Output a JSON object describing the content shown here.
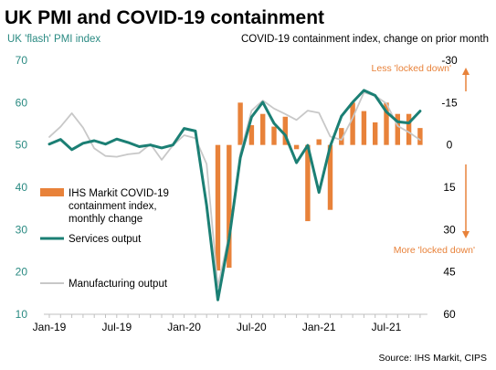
{
  "chart_data": {
    "type": "bar+line",
    "title": "UK PMI and COVID-19 containment",
    "left_axis_label": "UK 'flash' PMI index",
    "right_axis_label": "COVID-19 containment index, change on prior month",
    "left_ylim": [
      10,
      70
    ],
    "left_ticks": [
      "70",
      "60",
      "50",
      "40",
      "30",
      "20",
      "10"
    ],
    "right_ylim": [
      -30,
      60
    ],
    "right_ticks": [
      "-30",
      "-15",
      "0",
      "15",
      "30",
      "45",
      "60"
    ],
    "x_tick_labels": [
      "Jan-19",
      "Jul-19",
      "Jan-20",
      "Jul-20",
      "Jan-21",
      "Jul-21"
    ],
    "months": [
      "Jan-19",
      "Feb-19",
      "Mar-19",
      "Apr-19",
      "May-19",
      "Jun-19",
      "Jul-19",
      "Aug-19",
      "Sep-19",
      "Oct-19",
      "Nov-19",
      "Dec-19",
      "Jan-20",
      "Feb-20",
      "Mar-20",
      "Apr-20",
      "May-20",
      "Jun-20",
      "Jul-20",
      "Aug-20",
      "Sep-20",
      "Oct-20",
      "Nov-20",
      "Dec-20",
      "Jan-21",
      "Feb-21",
      "Mar-21",
      "Apr-21",
      "May-21",
      "Jun-21",
      "Jul-21",
      "Aug-21",
      "Sep-21",
      "Oct-21"
    ],
    "series": [
      {
        "name": "IHS Markit COVID-19 containment index, monthly change",
        "type": "bar",
        "axis": "right",
        "color": "#e8823a",
        "values": [
          null,
          null,
          null,
          null,
          null,
          null,
          null,
          null,
          null,
          null,
          null,
          null,
          null,
          null,
          0,
          44.5,
          43.5,
          -15,
          -7,
          -11,
          -6.5,
          -10,
          1.5,
          27,
          -2,
          23,
          -6,
          -15,
          -12,
          -8,
          -15,
          -11,
          -11,
          -6
        ]
      },
      {
        "name": "Services output",
        "type": "line",
        "axis": "left",
        "color": "#1b7f74",
        "values": [
          50.2,
          51.3,
          48.9,
          50.4,
          51.0,
          50.2,
          51.4,
          50.6,
          49.6,
          50.0,
          49.3,
          50.0,
          53.9,
          53.3,
          35.7,
          13.4,
          27.8,
          47.0,
          56.6,
          60.1,
          55.1,
          52.3,
          45.8,
          49.9,
          38.8,
          49.7,
          56.8,
          60.1,
          62.9,
          61.7,
          57.8,
          55.5,
          55.2,
          58.0
        ]
      },
      {
        "name": "Manufacturing output",
        "type": "line",
        "axis": "left",
        "color": "#c8c8c8",
        "values": [
          51.9,
          54.3,
          57.5,
          54.1,
          49.2,
          47.4,
          47.2,
          47.8,
          48.1,
          50.2,
          46.5,
          49.9,
          52.3,
          51.6,
          45.5,
          16.5,
          28.7,
          48.0,
          58.1,
          60.5,
          58.6,
          57.3,
          55.9,
          58.1,
          57.6,
          52.0,
          51.2,
          56.4,
          62.4,
          61.6,
          59.8,
          54.5,
          53.0,
          51.2
        ]
      }
    ],
    "annotations": {
      "up": "Less 'locked down'",
      "down": "More 'locked down'"
    },
    "source": "Source: IHS Markit, CIPS"
  },
  "colors": {
    "bar": "#e8823a",
    "services": "#1b7f74",
    "manufacturing": "#c8c8c8",
    "left_axis_text": "#2a8a82",
    "annotation": "#e8823a",
    "axis_line": "#c0c0c0"
  }
}
